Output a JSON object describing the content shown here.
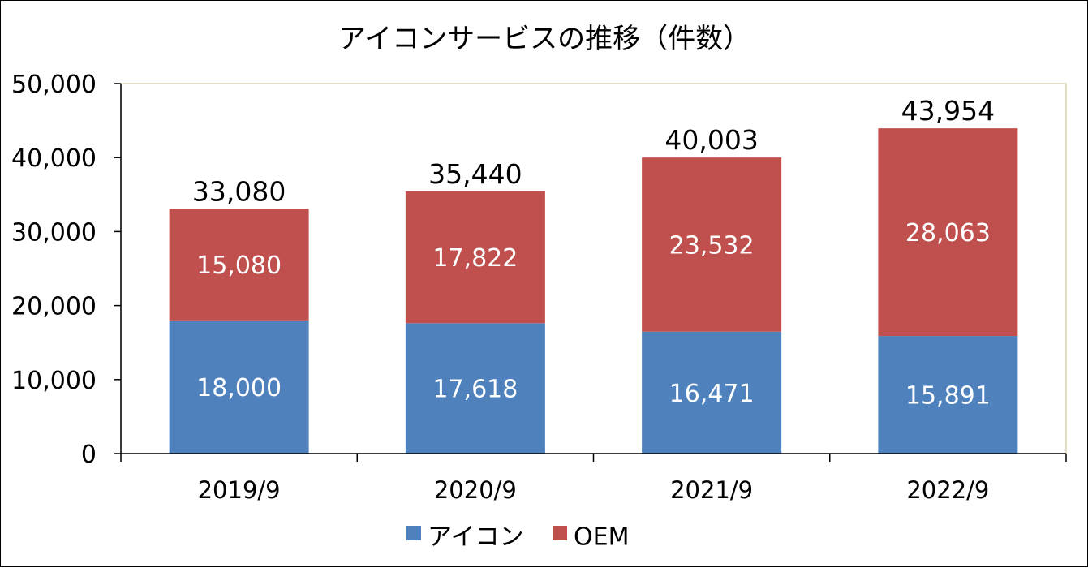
{
  "chart_data": {
    "type": "bar",
    "stacked": true,
    "title": "アイコンサービスの推移（件数）",
    "categories": [
      "2019/9",
      "2020/9",
      "2021/9",
      "2022/9"
    ],
    "series": [
      {
        "name": "アイコン",
        "color": "#4f81bd",
        "values": [
          18000,
          17618,
          16471,
          15891
        ]
      },
      {
        "name": "OEM",
        "color": "#c0504d",
        "values": [
          15080,
          17822,
          23532,
          28063
        ]
      }
    ],
    "totals": [
      33080,
      35440,
      40003,
      43954
    ],
    "ylim": [
      0,
      50000
    ],
    "yticks": [
      0,
      10000,
      20000,
      30000,
      40000,
      50000
    ],
    "legend": "bottom"
  }
}
